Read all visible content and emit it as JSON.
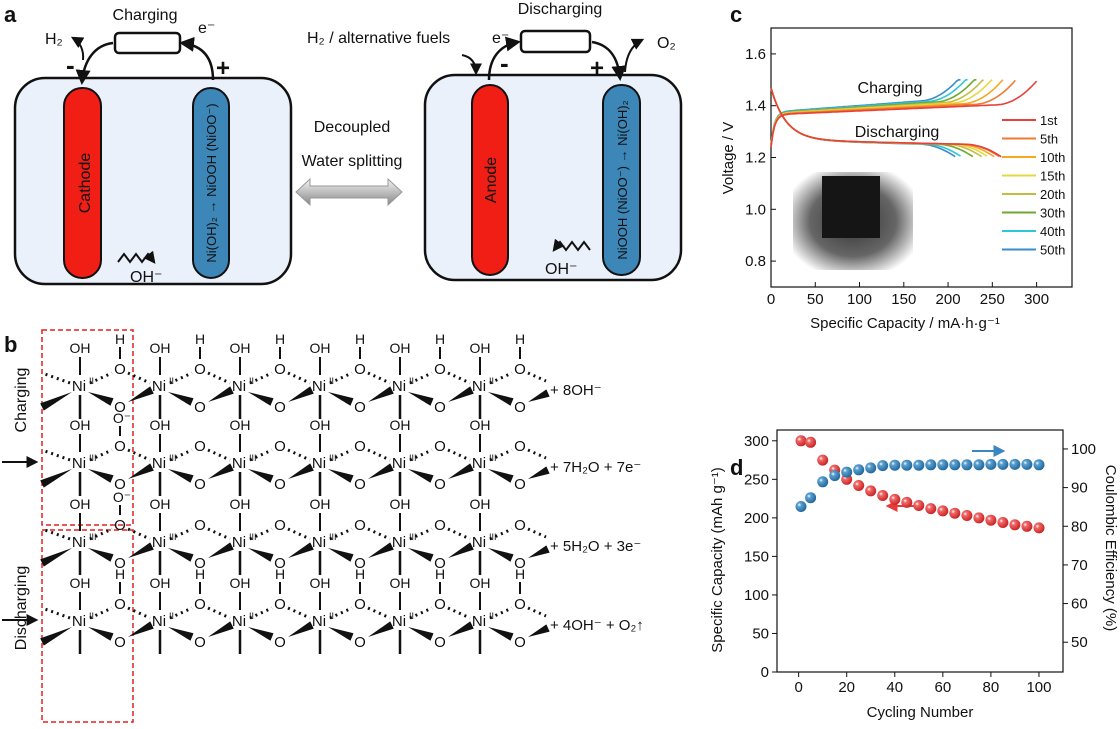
{
  "panel_labels": {
    "a": "a",
    "b": "b",
    "c": "c",
    "d": "d"
  },
  "panel_a": {
    "charging_cell": {
      "title": "Charging",
      "gas": "H₂",
      "electron": "e⁻",
      "minus": "-",
      "plus": "+",
      "cathode": "Cathode",
      "nickel_electrode": "Ni(OH)₂ → NiOOH (NiOO⁻)",
      "ion": "OH⁻"
    },
    "discharging_cell": {
      "title": "Discharging",
      "fuel": "H₂ / alternative fuels",
      "electron": "e⁻",
      "gas": "O₂",
      "minus": "-",
      "plus": "+",
      "anode": "Anode",
      "nickel_electrode": "NiOOH (NiOO⁻) → Ni(OH)₂",
      "ion": "OH⁻"
    },
    "middle": {
      "line1": "Decoupled",
      "line2": "Water splitting"
    },
    "colors": {
      "cathode": "#f01e14",
      "nickel": "#3c86b8",
      "cell": "#eaf1fa"
    }
  },
  "panel_b": {
    "charging_label": "Charging",
    "discharging_label": "Discharging",
    "ni": "Ni",
    "oh": "OH",
    "o": "O",
    "h": "H",
    "o_minus": "O⁻",
    "rows": [
      {
        "state": "II",
        "products": "+ 8OH⁻"
      },
      {
        "state": "III",
        "products": "+ 7H₂O + 7e⁻"
      },
      {
        "state": "III",
        "products": "+ 5H₂O  + 3e⁻"
      },
      {
        "state": "II",
        "products": "+ 4OH⁻  + O₂↑"
      }
    ]
  },
  "chart_data": [
    {
      "type": "line",
      "xlabel": "Specific Capacity / mA·h·g⁻¹",
      "ylabel": "Voltage / V",
      "xlim": [
        0,
        340
      ],
      "ylim": [
        0.7,
        1.7
      ],
      "xticks": [
        0,
        50,
        100,
        150,
        200,
        250,
        300
      ],
      "yticks": [
        0.8,
        1.0,
        1.2,
        1.4,
        1.6
      ],
      "annotations": [
        "Charging",
        "Discharging"
      ],
      "legend_placement": "right",
      "series": [
        {
          "name": "1st",
          "color": "#e8403a",
          "charge_capacity": 300,
          "discharge_capacity": 260,
          "charge_end_voltage": 1.5,
          "discharge_end_voltage": 1.2
        },
        {
          "name": "5th",
          "color": "#f07a30",
          "charge_capacity": 276,
          "discharge_capacity": 258,
          "charge_end_voltage": 1.5,
          "discharge_end_voltage": 1.2
        },
        {
          "name": "10th",
          "color": "#f4a824",
          "charge_capacity": 262,
          "discharge_capacity": 252,
          "charge_end_voltage": 1.5,
          "discharge_end_voltage": 1.2
        },
        {
          "name": "15th",
          "color": "#e6d844",
          "charge_capacity": 250,
          "discharge_capacity": 245,
          "charge_end_voltage": 1.5,
          "discharge_end_voltage": 1.2
        },
        {
          "name": "20th",
          "color": "#c2bd40",
          "charge_capacity": 241,
          "discharge_capacity": 238,
          "charge_end_voltage": 1.5,
          "discharge_end_voltage": 1.2
        },
        {
          "name": "30th",
          "color": "#6ea82e",
          "charge_capacity": 232,
          "discharge_capacity": 228,
          "charge_end_voltage": 1.5,
          "discharge_end_voltage": 1.2
        },
        {
          "name": "40th",
          "color": "#2cc8d8",
          "charge_capacity": 223,
          "discharge_capacity": 215,
          "charge_end_voltage": 1.5,
          "discharge_end_voltage": 1.2
        },
        {
          "name": "50th",
          "color": "#3a8cc8",
          "charge_capacity": 215,
          "discharge_capacity": 208,
          "charge_end_voltage": 1.5,
          "discharge_end_voltage": 1.2
        }
      ]
    },
    {
      "type": "scatter",
      "xlabel": "Cycling Number",
      "ylabel": "Specific Capacity (mAh g⁻¹)",
      "ylabel_right": "Coulombic Efficiency (%)",
      "xlim": [
        -9,
        110
      ],
      "ylim": [
        0,
        314
      ],
      "ylim_right": [
        42.3,
        104.9
      ],
      "xticks": [
        0,
        20,
        40,
        60,
        80,
        100
      ],
      "yticks": [
        0,
        50,
        100,
        150,
        200,
        250,
        300
      ],
      "yticks_right": [
        50,
        60,
        70,
        80,
        90,
        100
      ],
      "x": [
        1,
        5,
        10,
        15,
        20,
        25,
        30,
        35,
        40,
        45,
        50,
        55,
        60,
        65,
        70,
        75,
        80,
        85,
        90,
        95,
        100
      ],
      "series": [
        {
          "axis": "left",
          "color": "#e83a3a",
          "values": [
            300,
            298,
            275,
            262,
            250,
            242,
            235,
            229,
            224,
            220,
            216,
            212,
            209,
            206,
            203,
            200,
            197,
            194,
            191,
            189,
            187
          ]
        },
        {
          "axis": "right",
          "color": "#3a86c0",
          "values": [
            85.1,
            87.4,
            91.5,
            93.1,
            94.0,
            94.6,
            95.1,
            95.7,
            95.8,
            95.8,
            95.8,
            95.9,
            95.9,
            95.9,
            95.9,
            95.9,
            96.0,
            96.0,
            96.0,
            96.0,
            95.9
          ]
        }
      ]
    }
  ]
}
